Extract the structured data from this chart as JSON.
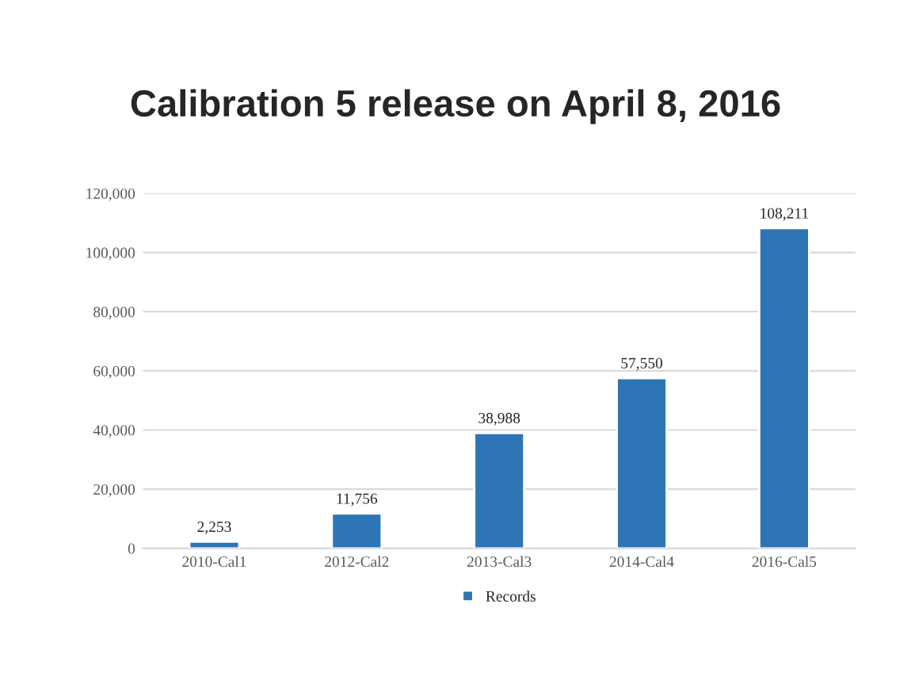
{
  "chart_data": {
    "type": "bar",
    "title": "Calibration 5 release on April 8, 2016",
    "categories": [
      "2010-Cal1",
      "2012-Cal2",
      "2013-Cal3",
      "2014-Cal4",
      "2016-Cal5"
    ],
    "series": [
      {
        "name": "Records",
        "color": "#2e75b6",
        "values": [
          2253,
          11756,
          38988,
          57550,
          108211
        ],
        "value_labels": [
          "2,253",
          "11,756",
          "38,988",
          "57,550",
          "108,211"
        ]
      }
    ],
    "ylim": [
      0,
      120000
    ],
    "yticks": [
      {
        "value": 0,
        "label": "0"
      },
      {
        "value": 20000,
        "label": "20,000"
      },
      {
        "value": 40000,
        "label": "40,000"
      },
      {
        "value": 60000,
        "label": "60,000"
      },
      {
        "value": 80000,
        "label": "80,000"
      },
      {
        "value": 100000,
        "label": "100,000"
      },
      {
        "value": 120000,
        "label": "120,000"
      }
    ],
    "grid": "y",
    "legend": "bottom"
  }
}
